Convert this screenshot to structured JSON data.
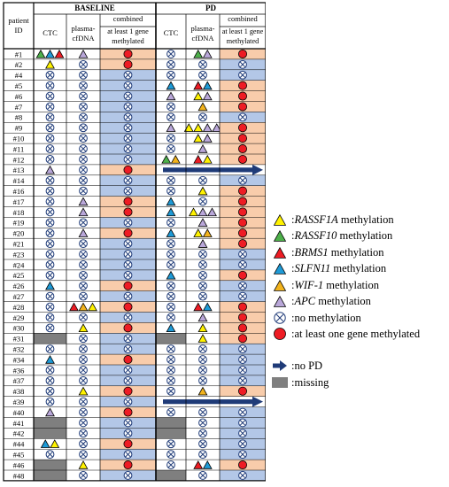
{
  "header": {
    "patient_id": "patient ID",
    "baseline": "BASELINE",
    "pd": "PD",
    "ctc": "CTC",
    "plasma_cfdna": "plasma-cfDNA",
    "combined": "combined",
    "at_least_1": "at least 1 gene methylated"
  },
  "colors": {
    "peach": "#f8ccab",
    "blue": "#b3c7e7",
    "grey": "#7f7f7f",
    "red": "#ee1c24",
    "arrow": "#1f3b78",
    "RASSF1A": "#fff200",
    "RASSF10": "#4db04a",
    "BRMS1": "#ed1c24",
    "SLFN11": "#1e9ad6",
    "WIF-1": "#f2b31c",
    "APC": "#b9a7d9"
  },
  "legend": [
    {
      "symbol": "triangle",
      "gene": "RASSF1A",
      "name": "RASSF1A",
      "suffix": " methylation"
    },
    {
      "symbol": "triangle",
      "gene": "RASSF10",
      "name": "RASSF10",
      "suffix": " methylation"
    },
    {
      "symbol": "triangle",
      "gene": "BRMS1",
      "name": "BRMS1",
      "suffix": " methylation"
    },
    {
      "symbol": "triangle",
      "gene": "SLFN11",
      "name": "SLFN11",
      "suffix": " methylation"
    },
    {
      "symbol": "triangle",
      "gene": "WIF-1",
      "name": "WIF-1",
      "suffix": " methylation"
    },
    {
      "symbol": "triangle",
      "gene": "APC",
      "name": "APC",
      "suffix": " methylation"
    },
    {
      "symbol": "nometh",
      "text": ":no methylation"
    },
    {
      "symbol": "reddot",
      "text": ":at least one gene methylated"
    },
    {
      "symbol": "arrow",
      "text": ":no PD"
    },
    {
      "symbol": "grey",
      "text": ":missing"
    }
  ],
  "rows": [
    {
      "id": "#1",
      "b_ctc": [
        "RASSF10",
        "SLFN11",
        "BRMS1"
      ],
      "b_plasma": [
        "APC"
      ],
      "b_comb": "pos",
      "pd_ctc": "none",
      "pd_plasma": [
        "RASSF10",
        "APC"
      ],
      "pd_comb": "pos"
    },
    {
      "id": "#2",
      "b_ctc": [
        "RASSF1A"
      ],
      "b_plasma": "none",
      "b_comb": "pos",
      "pd_ctc": "none",
      "pd_plasma": "none",
      "pd_comb": "neg"
    },
    {
      "id": "#4",
      "b_ctc": "none",
      "b_plasma": "none",
      "b_comb": "neg",
      "pd_ctc": "none",
      "pd_plasma": "none",
      "pd_comb": "neg"
    },
    {
      "id": "#5",
      "b_ctc": "none",
      "b_plasma": "none",
      "b_comb": "neg",
      "pd_ctc": [
        "SLFN11"
      ],
      "pd_plasma": [
        "BRMS1",
        "SLFN11"
      ],
      "pd_comb": "pos"
    },
    {
      "id": "#6",
      "b_ctc": "none",
      "b_plasma": "none",
      "b_comb": "neg",
      "pd_ctc": [
        "APC"
      ],
      "pd_plasma": [
        "RASSF1A",
        "APC"
      ],
      "pd_comb": "pos"
    },
    {
      "id": "#7",
      "b_ctc": "none",
      "b_plasma": "none",
      "b_comb": "neg",
      "pd_ctc": "none",
      "pd_plasma": [
        "WIF-1"
      ],
      "pd_comb": "pos"
    },
    {
      "id": "#8",
      "b_ctc": "none",
      "b_plasma": "none",
      "b_comb": "neg",
      "pd_ctc": "none",
      "pd_plasma": "none",
      "pd_comb": "neg"
    },
    {
      "id": "#9",
      "b_ctc": "none",
      "b_plasma": "none",
      "b_comb": "neg",
      "pd_ctc": [
        "APC"
      ],
      "pd_plasma": [
        "RASSF1A",
        "RASSF1A",
        "APC",
        "APC"
      ],
      "pd_comb": "pos"
    },
    {
      "id": "#10",
      "b_ctc": "none",
      "b_plasma": "none",
      "b_comb": "neg",
      "pd_ctc": "none",
      "pd_plasma": [
        "RASSF1A",
        "APC"
      ],
      "pd_comb": "pos"
    },
    {
      "id": "#11",
      "b_ctc": "none",
      "b_plasma": "none",
      "b_comb": "neg",
      "pd_ctc": "none",
      "pd_plasma": [
        "APC"
      ],
      "pd_comb": "pos"
    },
    {
      "id": "#12",
      "b_ctc": "none",
      "b_plasma": "none",
      "b_comb": "neg",
      "pd_ctc": [
        "RASSF10",
        "WIF-1"
      ],
      "pd_plasma": [
        "BRMS1",
        "RASSF1A"
      ],
      "pd_comb": "pos"
    },
    {
      "id": "#13",
      "b_ctc": [
        "APC"
      ],
      "b_plasma": "none",
      "b_comb": "pos",
      "pd": "nopd"
    },
    {
      "id": "#14",
      "b_ctc": "none",
      "b_plasma": "none",
      "b_comb": "neg",
      "pd_ctc": "none",
      "pd_plasma": "none",
      "pd_comb": "neg"
    },
    {
      "id": "#16",
      "b_ctc": "none",
      "b_plasma": "none",
      "b_comb": "neg",
      "pd_ctc": "none",
      "pd_plasma": [
        "RASSF1A"
      ],
      "pd_comb": "pos"
    },
    {
      "id": "#17",
      "b_ctc": "none",
      "b_plasma": [
        "APC"
      ],
      "b_comb": "pos",
      "pd_ctc": [
        "SLFN11"
      ],
      "pd_plasma": "none",
      "pd_comb": "pos"
    },
    {
      "id": "#18",
      "b_ctc": "none",
      "b_plasma": [
        "APC"
      ],
      "b_comb": "pos",
      "pd_ctc": [
        "SLFN11"
      ],
      "pd_plasma": [
        "RASSF1A",
        "APC",
        "APC"
      ],
      "pd_comb": "pos"
    },
    {
      "id": "#19",
      "b_ctc": "none",
      "b_plasma": "none",
      "b_comb": "neg",
      "pd_ctc": "none",
      "pd_plasma": [
        "APC"
      ],
      "pd_comb": "pos"
    },
    {
      "id": "#20",
      "b_ctc": "none",
      "b_plasma": [
        "APC"
      ],
      "b_comb": "pos",
      "pd_ctc": [
        "SLFN11"
      ],
      "pd_plasma": [
        "RASSF1A",
        "WIF-1"
      ],
      "pd_comb": "pos"
    },
    {
      "id": "#21",
      "b_ctc": "none",
      "b_plasma": "none",
      "b_comb": "neg",
      "pd_ctc": "none",
      "pd_plasma": [
        "APC"
      ],
      "pd_comb": "pos"
    },
    {
      "id": "#23",
      "b_ctc": "none",
      "b_plasma": "none",
      "b_comb": "neg",
      "pd_ctc": "none",
      "pd_plasma": "none",
      "pd_comb": "neg"
    },
    {
      "id": "#24",
      "b_ctc": "none",
      "b_plasma": "none",
      "b_comb": "neg",
      "pd_ctc": "none",
      "pd_plasma": "none",
      "pd_comb": "neg"
    },
    {
      "id": "#25",
      "b_ctc": "none",
      "b_plasma": "none",
      "b_comb": "neg",
      "pd_ctc": [
        "SLFN11"
      ],
      "pd_plasma": "none",
      "pd_comb": "pos"
    },
    {
      "id": "#26",
      "b_ctc": [
        "SLFN11"
      ],
      "b_plasma": "none",
      "b_comb": "pos",
      "pd_ctc": "none",
      "pd_plasma": "none",
      "pd_comb": "neg"
    },
    {
      "id": "#27",
      "b_ctc": "none",
      "b_plasma": "none",
      "b_comb": "neg",
      "pd_ctc": "none",
      "pd_plasma": "none",
      "pd_comb": "neg"
    },
    {
      "id": "#28",
      "b_ctc": "none",
      "b_plasma": [
        "BRMS1",
        "WIF-1",
        "RASSF1A"
      ],
      "b_comb": "pos",
      "pd_ctc": "none",
      "pd_plasma": [
        "BRMS1",
        "SLFN11"
      ],
      "pd_comb": "pos"
    },
    {
      "id": "#29",
      "b_ctc": "none",
      "b_plasma": "none",
      "b_comb": "neg",
      "pd_ctc": "none",
      "pd_plasma": [
        "APC"
      ],
      "pd_comb": "pos"
    },
    {
      "id": "#30",
      "b_ctc": "none",
      "b_plasma": [
        "RASSF1A"
      ],
      "b_comb": "pos",
      "pd_ctc": [
        "SLFN11"
      ],
      "pd_plasma": [
        "RASSF1A"
      ],
      "pd_comb": "pos"
    },
    {
      "id": "#31",
      "b_ctc": "missing",
      "b_plasma": "none",
      "b_comb": "neg",
      "pd_ctc": "missing",
      "pd_plasma": [
        "RASSF1A"
      ],
      "pd_comb": "pos"
    },
    {
      "id": "#32",
      "b_ctc": "none",
      "b_plasma": "none",
      "b_comb": "neg",
      "pd_ctc": "none",
      "pd_plasma": "none",
      "pd_comb": "neg"
    },
    {
      "id": "#34",
      "b_ctc": [
        "SLFN11"
      ],
      "b_plasma": "none",
      "b_comb": "pos",
      "pd_ctc": "none",
      "pd_plasma": "none",
      "pd_comb": "neg"
    },
    {
      "id": "#36",
      "b_ctc": "none",
      "b_plasma": "none",
      "b_comb": "neg",
      "pd_ctc": "none",
      "pd_plasma": "none",
      "pd_comb": "neg"
    },
    {
      "id": "#37",
      "b_ctc": "none",
      "b_plasma": "none",
      "b_comb": "neg",
      "pd_ctc": "none",
      "pd_plasma": "none",
      "pd_comb": "neg"
    },
    {
      "id": "#38",
      "b_ctc": "none",
      "b_plasma": [
        "RASSF1A"
      ],
      "b_comb": "pos",
      "pd_ctc": "none",
      "pd_plasma": [
        "WIF-1"
      ],
      "pd_comb": "pos"
    },
    {
      "id": "#39",
      "b_ctc": "none",
      "b_plasma": "none",
      "b_comb": "neg",
      "pd": "nopd"
    },
    {
      "id": "#40",
      "b_ctc": [
        "APC"
      ],
      "b_plasma": "none",
      "b_comb": "pos",
      "pd_ctc": "none",
      "pd_plasma": "none",
      "pd_comb": "neg"
    },
    {
      "id": "#41",
      "b_ctc": "missing",
      "b_plasma": "none",
      "b_comb": "neg",
      "pd_ctc": "missing",
      "pd_plasma": "none",
      "pd_comb": "neg"
    },
    {
      "id": "#42",
      "b_ctc": "missing",
      "b_plasma": "none",
      "b_comb": "neg",
      "pd_ctc": "missing",
      "pd_plasma": "none",
      "pd_comb": "neg"
    },
    {
      "id": "#44",
      "b_ctc": [
        "SLFN11",
        "RASSF1A"
      ],
      "b_plasma": "none",
      "b_comb": "pos",
      "pd_ctc": "none",
      "pd_plasma": "none",
      "pd_comb": "neg"
    },
    {
      "id": "#45",
      "b_ctc": "none",
      "b_plasma": "none",
      "b_comb": "neg",
      "pd_ctc": "none",
      "pd_plasma": "none",
      "pd_comb": "neg"
    },
    {
      "id": "#46",
      "b_ctc": "missing",
      "b_plasma": [
        "RASSF1A"
      ],
      "b_comb": "pos",
      "pd_ctc": "none",
      "pd_plasma": [
        "BRMS1",
        "SLFN11"
      ],
      "pd_comb": "pos"
    },
    {
      "id": "#48",
      "b_ctc": "missing",
      "b_plasma": "none",
      "b_comb": "neg",
      "pd_ctc": "missing",
      "pd_plasma": "none",
      "pd_comb": "neg"
    }
  ]
}
